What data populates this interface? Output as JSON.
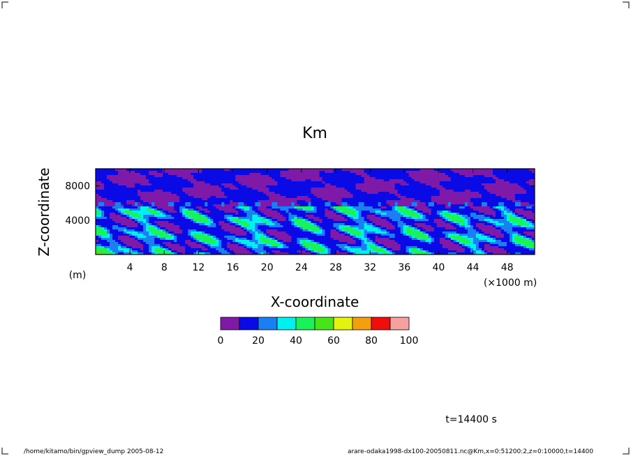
{
  "chart_data": {
    "type": "heatmap",
    "title": "Km",
    "xlabel": "X-coordinate",
    "ylabel": "Z-coordinate",
    "x_unit": "(×1000 m)",
    "y_unit": "(m)",
    "xlim": [
      0,
      51.2
    ],
    "ylim": [
      0,
      10000
    ],
    "x_ticks": [
      4,
      8,
      12,
      16,
      20,
      24,
      28,
      32,
      36,
      40,
      44,
      48
    ],
    "y_ticks": [
      4000,
      8000
    ],
    "colorbar": {
      "levels": [
        0,
        10,
        20,
        30,
        40,
        50,
        60,
        70,
        80,
        90,
        100
      ],
      "tick_labels": [
        "0",
        "20",
        "40",
        "60",
        "80",
        "100"
      ],
      "colors": [
        "#7f1aa8",
        "#0a0ae6",
        "#1a7ff2",
        "#00f0f0",
        "#19f259",
        "#45e51a",
        "#e5f20d",
        "#f2a00d",
        "#f20d0d",
        "#f7a0a0"
      ]
    },
    "field_summary": {
      "upper_layer_z": [
        5500,
        10000
      ],
      "upper_layer_values": "0-20",
      "lower_layer_z": [
        0,
        5500
      ],
      "lower_layer_values": "10-50"
    }
  },
  "annotations": {
    "time": "t=14400 s",
    "footer_left": "/home/kitamo/bin/gpview_dump  2005-08-12",
    "footer_right": "arare-odaka1998-dx100-20050811.nc@Km,x=0:51200:2,z=0:10000,t=14400"
  }
}
